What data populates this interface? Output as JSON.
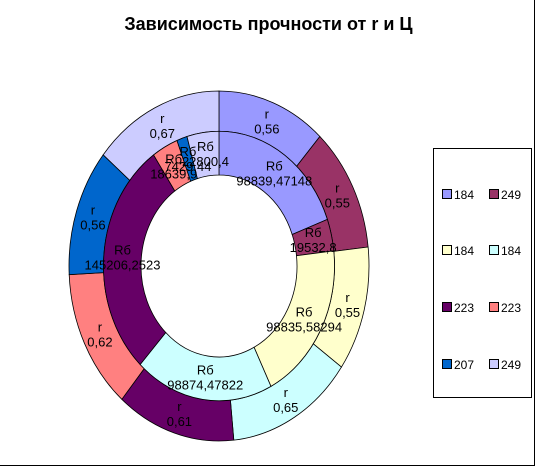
{
  "chart_data": {
    "type": "doughnut",
    "title": "Зависимость прочности от r и Ц",
    "rings": [
      {
        "name": "outer",
        "segments": [
          {
            "category": "184",
            "series": "r",
            "value": 0.56,
            "value_text": "0,56",
            "color": "#9999ff"
          },
          {
            "category": "249",
            "series": "r",
            "value": 0.55,
            "value_text": "0,55",
            "color": "#993366"
          },
          {
            "category": "184",
            "series": "r",
            "value": 0.55,
            "value_text": "0,55",
            "color": "#ffffcc"
          },
          {
            "category": "184",
            "series": "r",
            "value": 0.65,
            "value_text": "0,65",
            "color": "#ccffff"
          },
          {
            "category": "223",
            "series": "r",
            "value": 0.61,
            "value_text": "0,61",
            "color": "#660066"
          },
          {
            "category": "223",
            "series": "r",
            "value": 0.62,
            "value_text": "0,62",
            "color": "#ff8080"
          },
          {
            "category": "207",
            "series": "r",
            "value": 0.56,
            "value_text": "0,56",
            "color": "#0066cc"
          },
          {
            "category": "249",
            "series": "r",
            "value": 0.67,
            "value_text": "0,67",
            "color": "#ccccff"
          }
        ]
      },
      {
        "name": "inner",
        "segments": [
          {
            "category": "184",
            "series": "Rб",
            "value": 98839.47148,
            "value_text": "98839,47148",
            "color": "#9999ff"
          },
          {
            "category": "249",
            "series": "Rб",
            "value": 19532.8,
            "value_text": "19532,8",
            "color": "#993366"
          },
          {
            "category": "184",
            "series": "Rб",
            "value": 98835.58294,
            "value_text": "98835,58294",
            "color": "#ffffcc"
          },
          {
            "category": "184",
            "series": "Rб",
            "value": 98874.47822,
            "value_text": "98874,47822",
            "color": "#ccffff"
          },
          {
            "category": "223",
            "series": "Rб",
            "value": 145206.2523,
            "value_text": "145206,2523",
            "color": "#660066"
          },
          {
            "category": "223",
            "series": "Rб",
            "value": 18639.9,
            "value_text": "18639,9",
            "color": "#ff8080"
          },
          {
            "category": "207",
            "series": "Rб",
            "value": 7429.44,
            "value_text": "7429,44",
            "color": "#0066cc"
          },
          {
            "category": "249",
            "series": "Rб",
            "value": 22800.4,
            "value_text": "22800,4",
            "color": "#ccccff"
          }
        ]
      }
    ],
    "legend": {
      "placement": "right",
      "entries": [
        {
          "label": "184",
          "color": "#9999ff"
        },
        {
          "label": "249",
          "color": "#993366"
        },
        {
          "label": "184",
          "color": "#ffffcc"
        },
        {
          "label": "184",
          "color": "#ccffff"
        },
        {
          "label": "223",
          "color": "#660066"
        },
        {
          "label": "223",
          "color": "#ff8080"
        },
        {
          "label": "207",
          "color": "#0066cc"
        },
        {
          "label": "249",
          "color": "#ccccff"
        }
      ]
    }
  }
}
